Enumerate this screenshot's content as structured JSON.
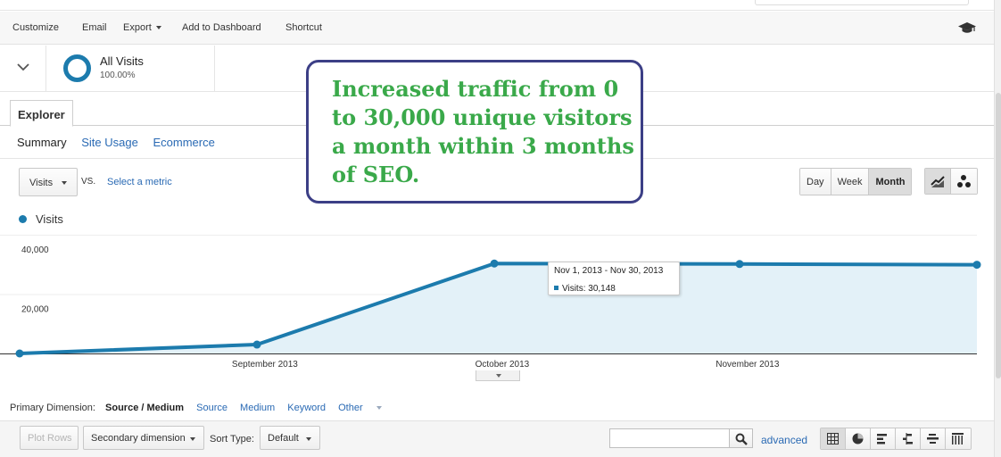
{
  "toolbar": {
    "customize": "Customize",
    "email": "Email",
    "export": "Export",
    "add_to_dashboard": "Add to Dashboard",
    "shortcut": "Shortcut"
  },
  "segment": {
    "name": "All Visits",
    "percent": "100.00%"
  },
  "tabs": {
    "explorer": "Explorer"
  },
  "subtabs": [
    "Summary",
    "Site Usage",
    "Ecommerce"
  ],
  "metric": {
    "selected": "Visits",
    "vs": "VS.",
    "select_metric": "Select a metric"
  },
  "period": {
    "buttons": [
      "Day",
      "Week",
      "Month"
    ],
    "active": "Month"
  },
  "legend": {
    "series": "Visits"
  },
  "chart_data": {
    "type": "area",
    "x": [
      "2013-08-01",
      "2013-08-31",
      "2013-09-30",
      "2013-10-31",
      "2013-11-30"
    ],
    "series": [
      {
        "name": "Visits",
        "values": [
          0,
          3000,
          30300,
          30148,
          29900
        ]
      }
    ],
    "ytick_labels": [
      "40,000",
      "20,000"
    ],
    "xtick_labels": [
      "September 2013",
      "October 2013",
      "November 2013"
    ],
    "ylim": [
      0,
      40000
    ],
    "grid": true,
    "colors": {
      "line": "#1c7bad",
      "fill": "#e3f1f8"
    }
  },
  "tooltip": {
    "range": "Nov 1, 2013 - Nov 30, 2013",
    "value": "Visits: 30,148"
  },
  "dimension": {
    "label": "Primary Dimension:",
    "active": "Source / Medium",
    "options": [
      "Source",
      "Medium",
      "Keyword"
    ],
    "other": "Other"
  },
  "table_bar": {
    "plot_rows": "Plot Rows",
    "secondary_dimension": "Secondary dimension",
    "sort_type_label": "Sort Type:",
    "sort_type_value": "Default",
    "search_value": "",
    "advanced": "advanced"
  },
  "annotation": {
    "text": "Increased traffic from 0 to 30,000 unique visitors a month within 3 months of SEO."
  },
  "icons": {
    "toolbar_right": "graduation-cap-icon",
    "segment_toggle": "chevron-down-icon",
    "viz_line": "line-chart-icon",
    "viz_motion": "motion-chart-icon",
    "search": "magnifier-icon",
    "views": [
      "table-view-icon",
      "pie-view-icon",
      "performance-view-icon",
      "comparison-view-icon",
      "term-cloud-view-icon",
      "pivot-view-icon"
    ]
  }
}
